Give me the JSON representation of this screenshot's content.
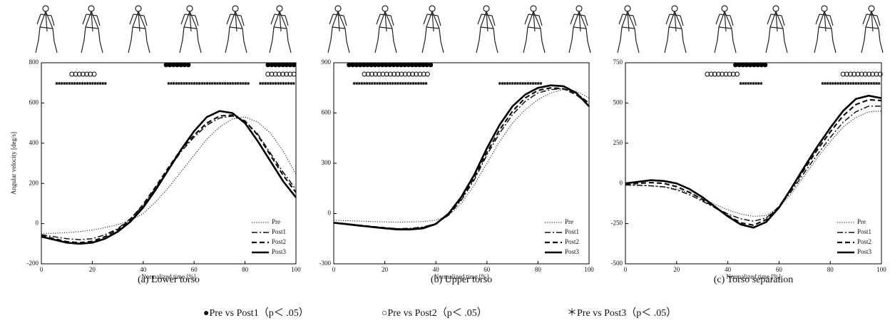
{
  "chart_data": [
    {
      "type": "line",
      "caption": "(a) Lower torso",
      "ylabel": "Angular velocity [deg/s]",
      "xlabel": "Normalized time [%]",
      "x": [
        0,
        5,
        10,
        15,
        20,
        25,
        30,
        35,
        40,
        45,
        50,
        55,
        60,
        65,
        70,
        75,
        80,
        85,
        90,
        95,
        100
      ],
      "xlim": [
        0,
        100
      ],
      "xticks": [
        0,
        20,
        40,
        60,
        80,
        100
      ],
      "ylim": [
        -200,
        800
      ],
      "yticks": [
        -200,
        0,
        200,
        400,
        600,
        800
      ],
      "legend": "lower right",
      "series": [
        {
          "name": "Pre",
          "style": "dotted",
          "color": "#333333",
          "values": [
            -50,
            -48,
            -45,
            -40,
            -32,
            -20,
            -5,
            15,
            50,
            110,
            180,
            260,
            340,
            420,
            480,
            520,
            530,
            505,
            450,
            360,
            245
          ]
        },
        {
          "name": "Post1",
          "style": "dashdot",
          "color": "#111111",
          "values": [
            -55,
            -65,
            -75,
            -80,
            -75,
            -55,
            -25,
            25,
            90,
            180,
            270,
            360,
            430,
            490,
            525,
            535,
            510,
            445,
            350,
            255,
            170
          ]
        },
        {
          "name": "Post2",
          "style": "dashed",
          "color": "#111111",
          "values": [
            -60,
            -75,
            -90,
            -95,
            -88,
            -65,
            -30,
            20,
            95,
            185,
            280,
            370,
            440,
            500,
            535,
            540,
            510,
            440,
            340,
            240,
            155
          ]
        },
        {
          "name": "Post3",
          "style": "solid",
          "color": "#000000",
          "values": [
            -65,
            -80,
            -95,
            -100,
            -95,
            -75,
            -40,
            10,
            80,
            170,
            270,
            370,
            460,
            530,
            560,
            550,
            500,
            410,
            310,
            210,
            130
          ]
        }
      ],
      "significance": [
        {
          "comparison": 0,
          "ranges": [
            [
              49,
              58
            ],
            [
              89,
              100
            ]
          ]
        },
        {
          "comparison": 1,
          "ranges": [
            [
              12,
              22
            ],
            [
              89,
              100
            ]
          ]
        },
        {
          "comparison": 2,
          "ranges": [
            [
              6,
              26
            ],
            [
              50,
              82
            ],
            [
              86,
              100
            ]
          ]
        }
      ]
    },
    {
      "type": "line",
      "caption": "(b) Upper torso",
      "xlabel": "Normalized time [%]",
      "x": [
        0,
        5,
        10,
        15,
        20,
        25,
        30,
        35,
        40,
        45,
        50,
        55,
        60,
        65,
        70,
        75,
        80,
        85,
        90,
        95,
        100
      ],
      "xlim": [
        0,
        100
      ],
      "xticks": [
        0,
        20,
        40,
        60,
        80,
        100
      ],
      "ylim": [
        -300,
        900
      ],
      "yticks": [
        -300,
        0,
        300,
        600,
        900
      ],
      "legend": "lower right",
      "series": [
        {
          "name": "Pre",
          "style": "dotted",
          "color": "#333333",
          "values": [
            -40,
            -42,
            -45,
            -48,
            -50,
            -52,
            -50,
            -48,
            -40,
            -10,
            60,
            170,
            300,
            430,
            540,
            620,
            680,
            720,
            740,
            730,
            690
          ]
        },
        {
          "name": "Post1",
          "style": "dashdot",
          "color": "#111111",
          "values": [
            -55,
            -62,
            -70,
            -78,
            -85,
            -90,
            -88,
            -80,
            -60,
            -10,
            80,
            200,
            350,
            480,
            590,
            670,
            720,
            740,
            745,
            720,
            660
          ]
        },
        {
          "name": "Post2",
          "style": "dashed",
          "color": "#111111",
          "values": [
            -55,
            -62,
            -70,
            -78,
            -85,
            -92,
            -92,
            -85,
            -60,
            -5,
            90,
            215,
            365,
            500,
            610,
            690,
            735,
            750,
            745,
            710,
            650
          ]
        },
        {
          "name": "Post3",
          "style": "solid",
          "color": "#000000",
          "values": [
            -55,
            -63,
            -72,
            -80,
            -88,
            -95,
            -95,
            -88,
            -62,
            0,
            100,
            230,
            390,
            530,
            640,
            710,
            750,
            765,
            760,
            720,
            640
          ]
        }
      ],
      "significance": [
        {
          "comparison": 0,
          "ranges": [
            [
              6,
              38
            ]
          ]
        },
        {
          "comparison": 1,
          "ranges": [
            [
              12,
              37
            ]
          ]
        },
        {
          "comparison": 2,
          "ranges": [
            [
              8,
              37
            ],
            [
              65,
              82
            ]
          ]
        }
      ]
    },
    {
      "type": "line",
      "caption": "(c) Torso separation",
      "xlabel": "Normalized time [%]",
      "x": [
        0,
        5,
        10,
        15,
        20,
        25,
        30,
        35,
        40,
        45,
        50,
        55,
        60,
        65,
        70,
        75,
        80,
        85,
        90,
        95,
        100
      ],
      "xlim": [
        0,
        100
      ],
      "xticks": [
        0,
        20,
        40,
        60,
        80,
        100
      ],
      "ylim": [
        -500,
        750
      ],
      "yticks": [
        -500,
        -250,
        0,
        250,
        500,
        750
      ],
      "legend": "lower right",
      "series": [
        {
          "name": "Pre",
          "style": "dotted",
          "color": "#333333",
          "values": [
            -10,
            -10,
            -15,
            -20,
            -35,
            -60,
            -95,
            -130,
            -165,
            -190,
            -205,
            -200,
            -150,
            -60,
            50,
            160,
            260,
            350,
            410,
            445,
            450
          ]
        },
        {
          "name": "Post1",
          "style": "dashdot",
          "color": "#111111",
          "values": [
            -10,
            -12,
            -15,
            -22,
            -40,
            -70,
            -110,
            -150,
            -190,
            -220,
            -235,
            -215,
            -145,
            -45,
            70,
            180,
            285,
            380,
            445,
            480,
            480
          ]
        },
        {
          "name": "Post2",
          "style": "dashed",
          "color": "#111111",
          "values": [
            -5,
            0,
            5,
            0,
            -20,
            -55,
            -100,
            -150,
            -200,
            -245,
            -260,
            -225,
            -145,
            -30,
            90,
            210,
            320,
            420,
            490,
            520,
            515
          ]
        },
        {
          "name": "Post3",
          "style": "solid",
          "color": "#000000",
          "values": [
            0,
            10,
            20,
            15,
            0,
            -35,
            -85,
            -145,
            -205,
            -255,
            -275,
            -240,
            -150,
            -25,
            105,
            230,
            345,
            450,
            525,
            545,
            530
          ]
        }
      ],
      "significance": [
        {
          "comparison": 0,
          "ranges": [
            [
              43,
              55
            ]
          ]
        },
        {
          "comparison": 1,
          "ranges": [
            [
              32,
              45
            ],
            [
              85,
              100
            ]
          ]
        },
        {
          "comparison": 2,
          "ranges": [
            [
              45,
              54
            ],
            [
              77,
              100
            ]
          ]
        }
      ]
    }
  ],
  "comparisons": [
    {
      "marker": "filled",
      "label": "●Pre vs Post1（p＜ .05）"
    },
    {
      "marker": "open",
      "label": "○Pre vs Post2（p＜ .05）"
    },
    {
      "marker": "star",
      "label": "＊Pre vs Post3（p＜ .05）"
    }
  ]
}
